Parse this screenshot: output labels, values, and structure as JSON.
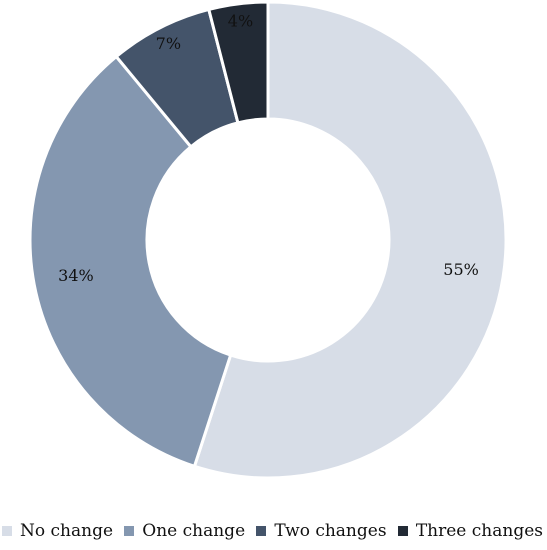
{
  "chart_data": {
    "type": "pie",
    "title": "",
    "donut": true,
    "legend_position": "bottom",
    "slices": [
      {
        "label": "No change",
        "value": 55,
        "display": "55%",
        "color": "#d7dde7"
      },
      {
        "label": "One change",
        "value": 34,
        "display": "34%",
        "color": "#8497b0"
      },
      {
        "label": "Two changes",
        "value": 7,
        "display": "7%",
        "color": "#44546a"
      },
      {
        "label": "Three changes",
        "value": 4,
        "display": "4%",
        "color": "#222a35"
      }
    ]
  }
}
